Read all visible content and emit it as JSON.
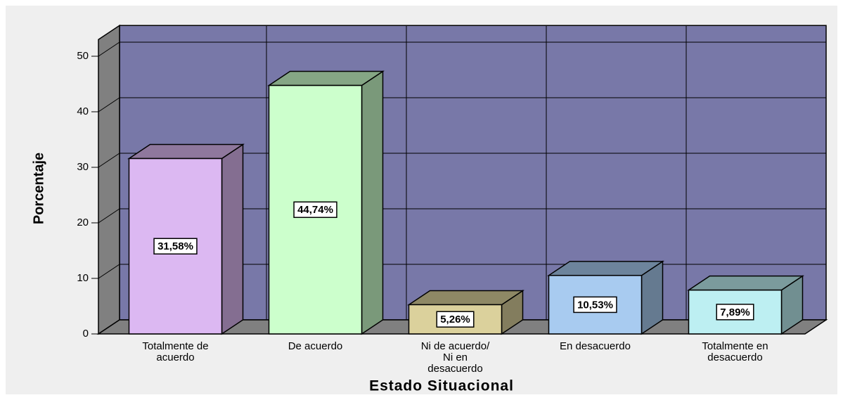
{
  "chart_data": {
    "type": "bar3d",
    "x_label": "Estado Situacional",
    "y_label": "Porcentaje",
    "categories": [
      "Totalmente de\nacuerdo",
      "De acuerdo",
      "Ni de acuerdo/\nNi en\ndesacuerdo",
      "En desacuerdo",
      "Totalmente en\ndesacuerdo"
    ],
    "values": [
      31.58,
      44.74,
      5.26,
      10.53,
      7.89
    ],
    "value_labels": [
      "31,58%",
      "44,74%",
      "5,26%",
      "10,53%",
      "7,89%"
    ],
    "colors": [
      "#dcb8f2",
      "#ccffcc",
      "#dbd19c",
      "#a8cbf0",
      "#bdeff2"
    ],
    "wall_color": "#7878a8",
    "ylim": [
      0,
      53
    ],
    "yticks": [
      0,
      10,
      20,
      30,
      40,
      50
    ],
    "grid": true
  }
}
